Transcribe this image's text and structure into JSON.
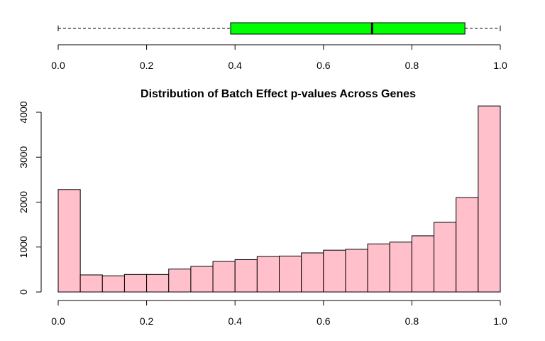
{
  "chart_data": [
    {
      "type": "boxplot",
      "orientation": "horizontal",
      "stats": {
        "min": 0.0,
        "q1": 0.39,
        "median": 0.71,
        "q3": 0.92,
        "max": 1.0
      },
      "fill": "#00ff00",
      "xlim": [
        0,
        1
      ],
      "xticks": [
        "0.0",
        "0.2",
        "0.4",
        "0.6",
        "0.8",
        "1.0"
      ],
      "xtick_values": [
        0,
        0.2,
        0.4,
        0.6,
        0.8,
        1.0
      ]
    },
    {
      "type": "histogram",
      "title": "Distribution of Batch Effect p-values Across Genes",
      "fill": "#ffc0cb",
      "bin_width": 0.05,
      "bin_starts": [
        0.0,
        0.05,
        0.1,
        0.15,
        0.2,
        0.25,
        0.3,
        0.35,
        0.4,
        0.45,
        0.5,
        0.55,
        0.6,
        0.65,
        0.7,
        0.75,
        0.8,
        0.85,
        0.9,
        0.95
      ],
      "values": [
        2280,
        380,
        360,
        390,
        390,
        510,
        570,
        680,
        720,
        790,
        800,
        870,
        930,
        950,
        1070,
        1110,
        1250,
        1550,
        2100,
        4140
      ],
      "xlim": [
        0,
        1
      ],
      "ylim": [
        0,
        4000
      ],
      "xticks": [
        "0.0",
        "0.2",
        "0.4",
        "0.6",
        "0.8",
        "1.0"
      ],
      "xtick_values": [
        0,
        0.2,
        0.4,
        0.6,
        0.8,
        1.0
      ],
      "yticks": [
        "0",
        "1000",
        "2000",
        "3000",
        "4000"
      ],
      "ytick_values": [
        0,
        1000,
        2000,
        3000,
        4000
      ],
      "grid": false
    }
  ]
}
